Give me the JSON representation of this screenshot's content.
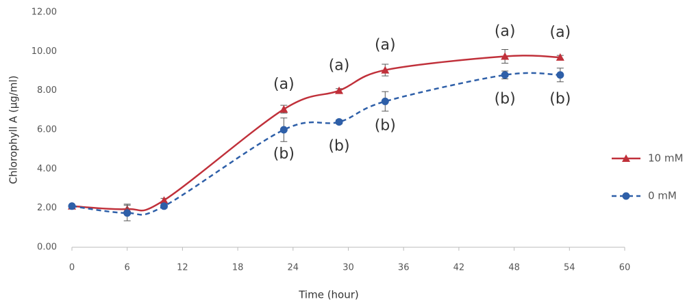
{
  "chart_data": {
    "type": "line",
    "x_label": "Time (hour)",
    "y_label": "Chlorophyll A (µg/ml)",
    "x": [
      0,
      6,
      10,
      23,
      29,
      34,
      47,
      53
    ],
    "series": [
      {
        "name": "10 mM",
        "color": "#c0303a",
        "marker": "triangle",
        "dashed": false,
        "values": [
          2.1,
          1.95,
          2.4,
          7.05,
          8.0,
          9.05,
          9.75,
          9.7
        ],
        "errors": [
          0,
          0.25,
          0.1,
          0.2,
          0.1,
          0.3,
          0.35,
          0.1
        ],
        "significance": [
          null,
          null,
          null,
          "(a)",
          "(a)",
          "(a)",
          "(a)",
          "(a)"
        ]
      },
      {
        "name": "0 mM",
        "color": "#2e5fa8",
        "marker": "circle",
        "dashed": true,
        "values": [
          2.1,
          1.75,
          2.1,
          6.0,
          6.4,
          7.45,
          8.8,
          8.8
        ],
        "errors": [
          0,
          0.4,
          0.1,
          0.6,
          0.1,
          0.5,
          0.2,
          0.35
        ],
        "significance": [
          null,
          null,
          null,
          "(b)",
          "(b)",
          "(b)",
          "(b)",
          "(b)"
        ]
      }
    ],
    "xlim": [
      0,
      60
    ],
    "xticks": [
      0,
      6,
      12,
      18,
      24,
      30,
      36,
      42,
      48,
      54,
      60
    ],
    "ylim": [
      0,
      12
    ],
    "yticks": [
      {
        "value": 0,
        "label": "0.00"
      },
      {
        "value": 2,
        "label": "2.00"
      },
      {
        "value": 4,
        "label": "4.00"
      },
      {
        "value": 6,
        "label": "6.00"
      },
      {
        "value": 8,
        "label": "8.00"
      },
      {
        "value": 10,
        "label": "10.00"
      },
      {
        "value": 12,
        "label": "12.00"
      }
    ],
    "grid": false,
    "legend": "right"
  }
}
